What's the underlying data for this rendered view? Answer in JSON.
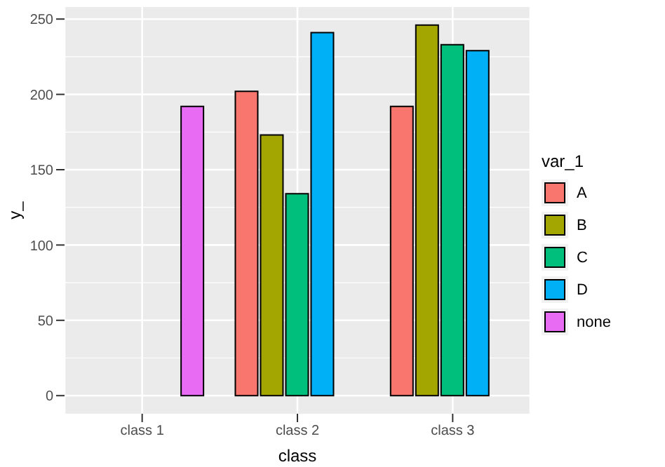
{
  "chart_data": {
    "type": "bar",
    "xlabel": "class",
    "ylabel": "y_",
    "legend_title": "var_1",
    "categories": [
      "class 1",
      "class 2",
      "class 3"
    ],
    "series": [
      {
        "name": "A",
        "color": "#f8766d",
        "values": [
          null,
          202,
          192
        ]
      },
      {
        "name": "B",
        "color": "#a3a500",
        "values": [
          null,
          173,
          246
        ]
      },
      {
        "name": "C",
        "color": "#00bf7d",
        "values": [
          null,
          134,
          233
        ]
      },
      {
        "name": "D",
        "color": "#00b0f6",
        "values": [
          null,
          241,
          229
        ]
      },
      {
        "name": "none",
        "color": "#e76bf3",
        "values": [
          192,
          null,
          null
        ]
      }
    ],
    "ylim": [
      -12,
      258
    ],
    "yticks": [
      0,
      50,
      100,
      150,
      200,
      250
    ],
    "grid": true,
    "legend": "right"
  }
}
